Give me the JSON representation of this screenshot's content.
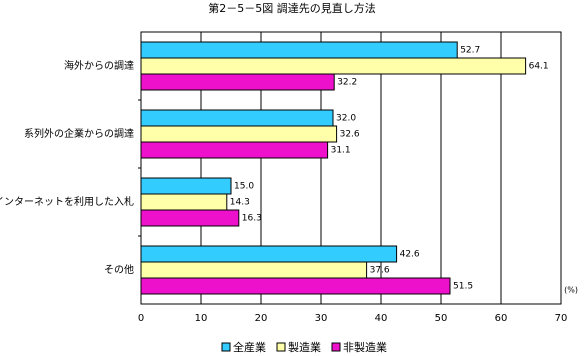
{
  "chart_data": {
    "type": "hbar",
    "title": "第2－5－5図 調達先の見直し方法",
    "categories": [
      "海外からの調達",
      "系列外の企業からの調達",
      "インターネットを利用した入札",
      "その他"
    ],
    "series": [
      {
        "name": "全産業",
        "color": "#33ccff",
        "values": [
          52.7,
          32.0,
          15.0,
          42.6
        ],
        "value_labels": [
          "52.7",
          "32.0",
          "15.0",
          "42.6"
        ]
      },
      {
        "name": "製造業",
        "color": "#ffffaa",
        "values": [
          64.1,
          32.6,
          14.3,
          37.6
        ],
        "value_labels": [
          "64.1",
          "32.6",
          "14.3",
          "37.6"
        ]
      },
      {
        "name": "非製造業",
        "color": "#ee11cc",
        "values": [
          32.2,
          31.1,
          16.3,
          51.5
        ],
        "value_labels": [
          "32.2",
          "31.1",
          "16.3",
          "51.5"
        ]
      }
    ],
    "x_unit": "(%)",
    "xlim": [
      0,
      70
    ],
    "xticks": [
      0,
      10,
      20,
      30,
      40,
      50,
      60,
      70
    ],
    "grid": true
  }
}
